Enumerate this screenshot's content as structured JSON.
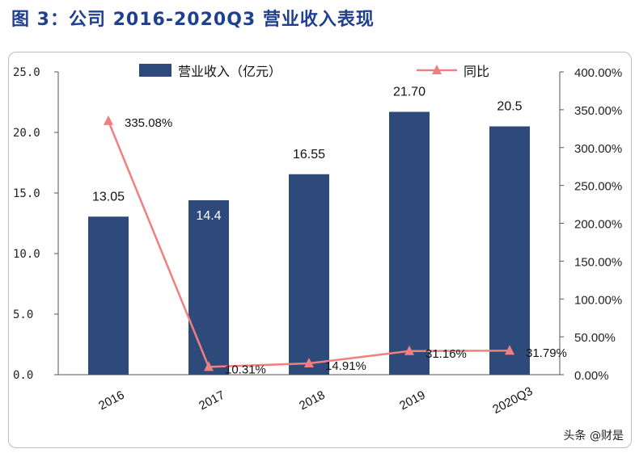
{
  "title": "图 3：公司 2016-2020Q3 营业收入表现",
  "watermark": "头条 @财是",
  "chart_data": {
    "type": "bar+line",
    "categories": [
      "2016",
      "2017",
      "2018",
      "2019",
      "2020Q3"
    ],
    "series": [
      {
        "name": "营业收入（亿元）",
        "type": "bar",
        "axis": "left",
        "values": [
          13.05,
          14.4,
          16.55,
          21.7,
          20.5
        ],
        "labels": [
          "13.05",
          "14.4",
          "16.55",
          "21.70",
          "20.5"
        ],
        "color": "#2e4a7a"
      },
      {
        "name": "同比",
        "type": "line",
        "axis": "right",
        "values": [
          335.08,
          10.31,
          14.91,
          31.16,
          31.79
        ],
        "labels": [
          "335.08%",
          "10.31%",
          "14.91%",
          "31.16%",
          "31.79%"
        ],
        "color": "#f08080"
      }
    ],
    "y_left": {
      "ylim": [
        0,
        25
      ],
      "ticks": [
        "0.0",
        "5.0",
        "10.0",
        "15.0",
        "20.0",
        "25.0"
      ]
    },
    "y_right": {
      "ylim": [
        0,
        400
      ],
      "ticks": [
        "0.00%",
        "50.00%",
        "100.00%",
        "150.00%",
        "200.00%",
        "250.00%",
        "300.00%",
        "350.00%",
        "400.00%"
      ]
    },
    "legend": "top",
    "grid": false
  }
}
